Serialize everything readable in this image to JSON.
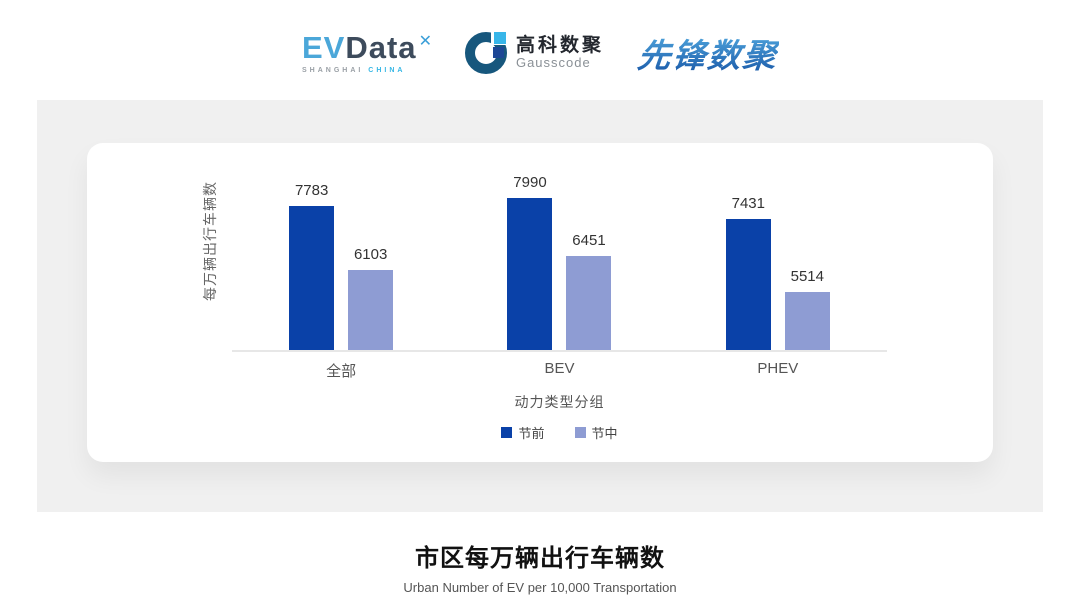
{
  "header": {
    "evdata_logo": {
      "ev": "EV",
      "data": "Data",
      "star": "✕",
      "caption_shanghai": "SHANGHAI",
      "caption_china": "CHINA"
    },
    "gausscode_logo": {
      "cn": "高科数聚",
      "en": "Gausscode"
    },
    "pioneer_logo": {
      "text": "先锋数聚"
    }
  },
  "colors": {
    "panel_bg": "#f0f0f0",
    "bar_pre_holiday": "#0a41a8",
    "bar_mid_holiday": "#8e9cd3",
    "baseline": "#e7e7e7"
  },
  "chart_data": {
    "type": "bar",
    "categories": [
      "全部",
      "BEV",
      "PHEV"
    ],
    "series": [
      {
        "name": "节前",
        "values": [
          7783,
          7990,
          7431
        ],
        "color": "#0a41a8"
      },
      {
        "name": "节中",
        "values": [
          6103,
          6451,
          5514
        ],
        "color": "#8e9cd3"
      }
    ],
    "title": "市区每万辆出行车辆数",
    "subtitle": "Urban Number of EV per 10,000 Transportation",
    "xlabel": "动力类型分组",
    "ylabel": "每万辆出行车辆数",
    "ylim": [
      4000,
      8400
    ],
    "grid": false,
    "legend_position": "bottom"
  }
}
